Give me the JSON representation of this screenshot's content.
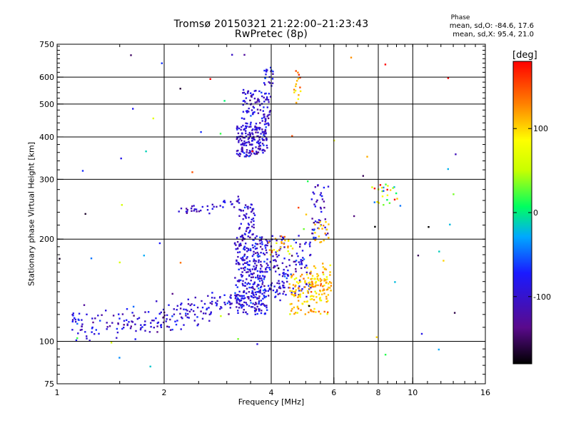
{
  "title": {
    "line1": "Tromsø 20150321 21:22:00–21:23:43",
    "line2": "RwPretec (8p)"
  },
  "phase_stats": {
    "heading": "Phase",
    "o_line": "mean, sd,O: -84.6, 17.6",
    "x_line": "mean, sd,X:  95.4, 21.0"
  },
  "chart_data": {
    "type": "scatter",
    "title": "Tromsø 20150321 21:22:00–21:23:43",
    "subtitle": "RwPretec (8p)",
    "xlabel": "Frequency [MHz]",
    "ylabel": "Stationary phase Virtual Height [km]",
    "xscale": "log",
    "yscale": "log",
    "xlim": [
      1,
      16
    ],
    "ylim": [
      75,
      750
    ],
    "xticks": [
      1,
      2,
      4,
      6,
      8,
      10,
      16
    ],
    "xtick_labels": [
      "1",
      "2",
      "4",
      "6",
      "8",
      "10",
      "16"
    ],
    "yticks": [
      75,
      100,
      200,
      300,
      400,
      500,
      600,
      750
    ],
    "ytick_labels": [
      "75",
      "100",
      "200",
      "300",
      "400",
      "500",
      "600",
      "750"
    ],
    "x_gridlines": [
      2,
      4,
      6,
      8,
      10
    ],
    "y_gridlines": [
      100,
      200,
      300,
      400,
      500,
      600
    ],
    "grid": true,
    "colorbar": {
      "label": "[deg]",
      "range": [
        -180,
        180
      ],
      "ticks": [
        100,
        0,
        -100
      ],
      "tick_labels": [
        "100",
        "0",
        "-100"
      ]
    },
    "point_groups": [
      {
        "type": "curve",
        "x": [
          1.1,
          1.3,
          1.5,
          1.8,
          2.0,
          2.3,
          2.6,
          2.9,
          3.2,
          3.5,
          3.8,
          4.1,
          4.4
        ],
        "y": [
          113,
          111,
          112,
          114,
          117,
          120,
          124,
          128,
          132,
          136,
          140,
          143,
          146
        ],
        "n": 260,
        "spread": 0.05,
        "phase": -95,
        "phase_sd": 22
      },
      {
        "type": "band",
        "x": [
          3.15,
          3.9
        ],
        "y": [
          120,
          205
        ],
        "n": 300,
        "phase": -95,
        "phase_sd": 20
      },
      {
        "type": "band",
        "x": [
          3.25,
          3.6
        ],
        "y": [
          205,
          255
        ],
        "n": 50,
        "phase": -100,
        "phase_sd": 18
      },
      {
        "type": "band",
        "x": [
          3.9,
          5.2
        ],
        "y": [
          135,
          205
        ],
        "n": 130,
        "phase": -95,
        "phase_sd": 20
      },
      {
        "type": "band",
        "x": [
          3.2,
          3.9
        ],
        "y": [
          350,
          430
        ],
        "n": 170,
        "phase": -100,
        "phase_sd": 18
      },
      {
        "type": "band",
        "x": [
          3.3,
          4.0
        ],
        "y": [
          430,
          560
        ],
        "n": 100,
        "phase": -95,
        "phase_sd": 20
      },
      {
        "type": "band",
        "x": [
          3.8,
          4.05
        ],
        "y": [
          560,
          640
        ],
        "n": 22,
        "phase": -85,
        "phase_sd": 20
      },
      {
        "type": "band",
        "x": [
          4.5,
          5.8
        ],
        "y": [
          120,
          158
        ],
        "n": 130,
        "phase": 105,
        "phase_sd": 20
      },
      {
        "type": "band",
        "x": [
          5.0,
          5.9
        ],
        "y": [
          140,
          170
        ],
        "n": 45,
        "phase": 110,
        "phase_sd": 15
      },
      {
        "type": "band",
        "x": [
          3.9,
          4.6
        ],
        "y": [
          180,
          205
        ],
        "n": 25,
        "phase": 110,
        "phase_sd": 25
      },
      {
        "type": "band",
        "x": [
          5.2,
          5.8
        ],
        "y": [
          200,
          290
        ],
        "n": 45,
        "phase": -100,
        "phase_sd": 25
      },
      {
        "type": "band",
        "x": [
          5.3,
          5.8
        ],
        "y": [
          195,
          225
        ],
        "n": 18,
        "phase": 110,
        "phase_sd": 15
      },
      {
        "type": "band",
        "x": [
          4.6,
          4.85
        ],
        "y": [
          500,
          640
        ],
        "n": 16,
        "phase": 110,
        "phase_sd": 25
      },
      {
        "type": "curve",
        "x": [
          2.2,
          2.5,
          2.8,
          3.1,
          3.3
        ],
        "y": [
          240,
          243,
          250,
          256,
          262
        ],
        "n": 40,
        "spread": 0.02,
        "phase": -100,
        "phase_sd": 15
      },
      {
        "type": "band",
        "x": [
          7.6,
          9.3
        ],
        "y": [
          250,
          290
        ],
        "n": 25,
        "phase": 60,
        "phase_sd": 70
      },
      {
        "type": "band",
        "x": [
          1.0,
          14.0
        ],
        "y": [
          80,
          700
        ],
        "n": 65,
        "phase": -40,
        "phase_sd": 110
      }
    ]
  }
}
